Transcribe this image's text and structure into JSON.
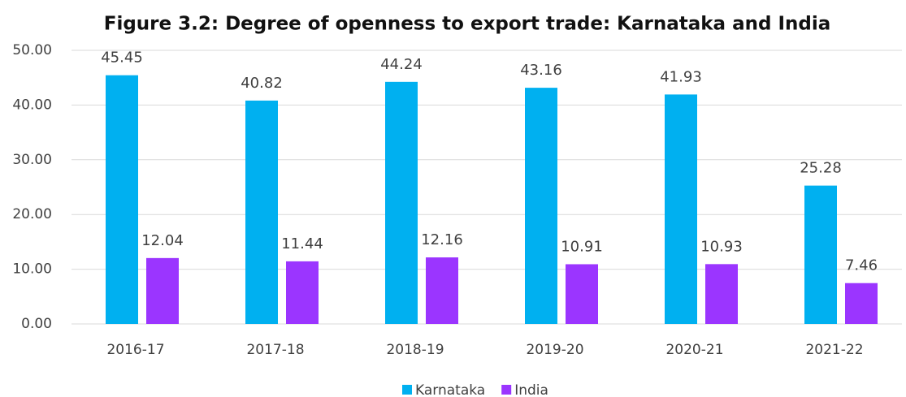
{
  "chart_data": {
    "type": "bar",
    "title": "Figure 3.2: Degree of openness to export trade: Karnataka and India",
    "categories": [
      "2016-17",
      "2017-18",
      "2018-19",
      "2019-20",
      "2020-21",
      "2021-22"
    ],
    "series": [
      {
        "name": "Karnataka",
        "color": "#00b0f0",
        "values": [
          45.45,
          40.82,
          44.24,
          43.16,
          41.93,
          25.28
        ]
      },
      {
        "name": "India",
        "color": "#9b35ff",
        "values": [
          12.04,
          11.44,
          12.16,
          10.91,
          10.93,
          7.46
        ]
      }
    ],
    "ylim": [
      0,
      50
    ],
    "yticks": [
      {
        "value": 0,
        "label": "0.00"
      },
      {
        "value": 10,
        "label": "10.00"
      },
      {
        "value": 20,
        "label": "20.00"
      },
      {
        "value": 30,
        "label": "30.00"
      },
      {
        "value": 40,
        "label": "40.00"
      },
      {
        "value": 50,
        "label": "50.00"
      }
    ],
    "grid": true,
    "legend": "bottom"
  }
}
